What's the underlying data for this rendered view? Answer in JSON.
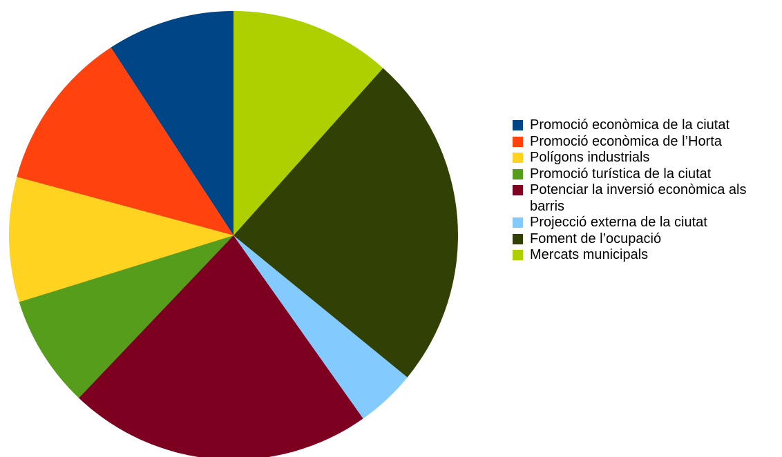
{
  "chart_data": {
    "type": "pie",
    "categories": [
      "Promoció econòmica de la ciutat",
      "Promoció econòmica de l’Horta",
      "Polígons industrials",
      "Promoció turística de la ciutat",
      "Potenciar la inversió econòmica als barris",
      "Projecció externa de la ciutat",
      "Foment de l’ocupació",
      "Mercats municipals"
    ],
    "values": [
      9.2,
      11.6,
      9.0,
      8.1,
      21.9,
      4.3,
      24.3,
      11.6
    ],
    "colors": [
      "#004586",
      "#ff420e",
      "#ffd320",
      "#579d1c",
      "#7e0021",
      "#83caff",
      "#314004",
      "#aecf00"
    ],
    "legend": "right"
  }
}
